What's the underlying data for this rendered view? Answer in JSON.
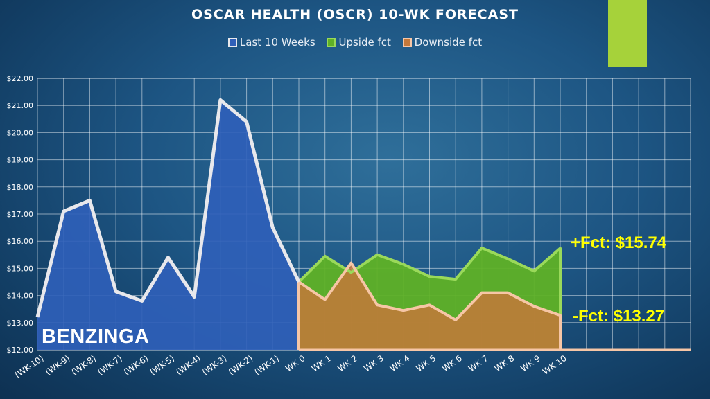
{
  "colors": {
    "last": "#2f5fb8",
    "last_line": "#e8e8ec",
    "upside": "#5fb126",
    "upside_line": "#9ad95a",
    "downside": "#c4783a",
    "downside_line": "#f6c6a6",
    "accent": "#a6d23a",
    "label": "#ffff00"
  },
  "watermark": "BENZINGA",
  "annotations": {
    "upside": "+Fct: $15.74",
    "downside": "-Fct: $13.27"
  },
  "chart_data": {
    "type": "area",
    "title": "OSCAR HEALTH (OSCR) 10-WK FORECAST",
    "categories": [
      "(WK-10)",
      "(WK-9)",
      "(WK-8)",
      "(WK-7)",
      "(WK-6)",
      "(WK-5)",
      "(WK-4)",
      "(WK-3)",
      "(WK-2)",
      "(WK-1)",
      "WK 0",
      "WK 1",
      "WK 2",
      "WK 3",
      "WK 4",
      "WK 5",
      "WK 6",
      "WK 7",
      "WK 8",
      "WK 9",
      "WK 10"
    ],
    "yticks": [
      "$12.00",
      "$13.00",
      "$14.00",
      "$15.00",
      "$16.00",
      "$17.00",
      "$18.00",
      "$19.00",
      "$20.00",
      "$21.00",
      "$22.00"
    ],
    "ylim": [
      12,
      22
    ],
    "grid": true,
    "legend_position": "top",
    "series": [
      {
        "name": "Last 10 Weeks",
        "values": [
          13.2,
          17.1,
          17.5,
          14.15,
          13.8,
          15.4,
          13.95,
          21.2,
          20.4,
          16.5,
          14.5,
          null,
          null,
          null,
          null,
          null,
          null,
          null,
          null,
          null,
          null
        ]
      },
      {
        "name": "Upside fct",
        "values": [
          null,
          null,
          null,
          null,
          null,
          null,
          null,
          null,
          null,
          null,
          14.5,
          15.45,
          14.85,
          15.5,
          15.15,
          14.7,
          14.6,
          15.75,
          15.35,
          14.9,
          15.74
        ]
      },
      {
        "name": "Downside fct",
        "values": [
          null,
          null,
          null,
          null,
          null,
          null,
          null,
          null,
          null,
          null,
          14.5,
          13.85,
          15.2,
          13.65,
          13.45,
          13.65,
          13.1,
          14.1,
          14.1,
          13.6,
          13.27
        ]
      }
    ]
  }
}
